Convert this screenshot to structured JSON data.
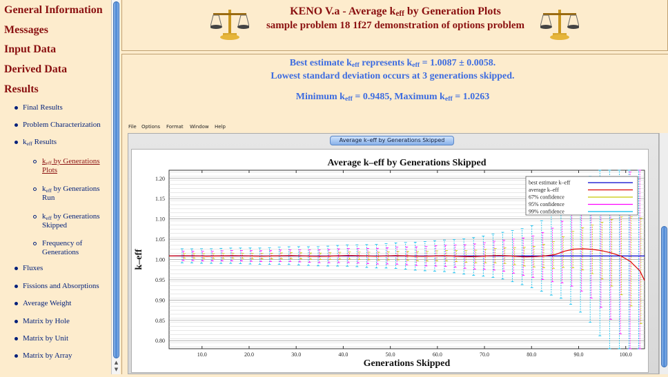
{
  "nav": {
    "items": [
      {
        "label": "General Information"
      },
      {
        "label": "Messages"
      },
      {
        "label": "Input Data"
      },
      {
        "label": "Derived Data"
      },
      {
        "label": "Results"
      }
    ],
    "results_items": [
      {
        "label": "Final Results"
      },
      {
        "label": "Problem Characterization"
      },
      {
        "label": "k",
        "sub": "eff",
        "rest": " Results"
      }
    ],
    "keff_subitems": [
      {
        "l1a": "k",
        "l1sub": "eff",
        "l1b": " by Generations",
        "l2": "Plots"
      },
      {
        "l1a": "k",
        "l1sub": "eff",
        "l1b": " by Generations",
        "l2": "Run"
      },
      {
        "l1a": "k",
        "l1sub": "eff",
        "l1b": " by Generations",
        "l2": "Skipped"
      },
      {
        "l1a": "Frequency of",
        "l1sub": "",
        "l1b": "",
        "l2": "Generations"
      }
    ],
    "more_items": [
      {
        "label": "Fluxes"
      },
      {
        "label": "Fissions and Absorptions"
      },
      {
        "label": "Average Weight"
      },
      {
        "label": "Matrix by Hole"
      },
      {
        "label": "Matrix by Unit"
      },
      {
        "label": "Matrix by Array"
      }
    ]
  },
  "header": {
    "title_a": "KENO V.a - Average k",
    "title_sub": "eff",
    "title_b": " by Generation Plots",
    "subtitle": "sample problem 18 1f27 demonstration of options problem"
  },
  "info": {
    "line1_a": "Best estimate k",
    "line1_sub1": "eff",
    "line1_b": " represents k",
    "line1_sub2": "eff",
    "line1_c": " = 1.0087 ± 0.0058.",
    "line2": "Lowest standard deviation occurs at 3 generations skipped.",
    "line3_a": "Minimum k",
    "line3_sub1": "eff",
    "line3_b": " = 0.9485, Maximum k",
    "line3_sub2": "eff",
    "line3_c": " = 1.0263"
  },
  "app_menu": [
    "File",
    "Options",
    "Format",
    "Window",
    "Help"
  ],
  "window_tab": "Average k–eff by Generations Skipped",
  "colors": {
    "best": "#0000cc",
    "avg": "#dd0000",
    "c67": "#c8c800",
    "c95": "#ff00ff",
    "c99": "#00bbee"
  },
  "chart_data": {
    "type": "line",
    "title": "Average k–eff by Generations Skipped",
    "xlabel": "Generations Skipped",
    "ylabel": "k–eff",
    "xlim": [
      3,
      104
    ],
    "ylim": [
      0.78,
      1.22
    ],
    "xticks": [
      "10.0",
      "20.0",
      "30.0",
      "40.0",
      "50.0",
      "60.0",
      "70.0",
      "80.0",
      "90.0",
      "100.0"
    ],
    "yticks": [
      "1.20",
      "1.15",
      "1.10",
      "1.05",
      "1.00",
      "0.95",
      "0.90",
      "0.85",
      "0.80"
    ],
    "legend": [
      "best estimate k–eff",
      "average k–eff",
      "67% confidence",
      "95% confidence",
      "99% confidence"
    ],
    "legend_position": "top-right",
    "grid": true,
    "best_estimate": 1.0087,
    "sigma": [
      0.0058,
      0.0058,
      0.006,
      0.006,
      0.0062,
      0.0063,
      0.0064,
      0.0066,
      0.0067,
      0.0069,
      0.0071,
      0.0073,
      0.0075,
      0.0077,
      0.0079,
      0.0082,
      0.0085,
      0.0088,
      0.009,
      0.0094,
      0.0097,
      0.01,
      0.0105,
      0.011,
      0.0115,
      0.012,
      0.0125,
      0.013,
      0.0137,
      0.0145,
      0.0155,
      0.0165,
      0.0178,
      0.0192,
      0.021,
      0.023,
      0.0255,
      0.029,
      0.033,
      0.038,
      0.045,
      0.052,
      0.06,
      0.07,
      0.082,
      0.096,
      0.11,
      0.13
    ],
    "series": [
      {
        "name": "average k–eff",
        "x": [
          3,
          5,
          7,
          9,
          11,
          13,
          15,
          17,
          19,
          21,
          23,
          25,
          27,
          29,
          31,
          33,
          35,
          37,
          39,
          41,
          43,
          45,
          47,
          49,
          51,
          53,
          55,
          57,
          59,
          61,
          63,
          65,
          67,
          69,
          71,
          73,
          75,
          77,
          79,
          81,
          83,
          85,
          87,
          89,
          91,
          93,
          95,
          97,
          99,
          101,
          103,
          104
        ],
        "y": [
          1.0087,
          1.009,
          1.0092,
          1.0088,
          1.0084,
          1.0086,
          1.0091,
          1.0094,
          1.009,
          1.0085,
          1.0082,
          1.0087,
          1.0092,
          1.0095,
          1.009,
          1.0083,
          1.0079,
          1.0084,
          1.0092,
          1.0098,
          1.0093,
          1.0086,
          1.0081,
          1.0088,
          1.0095,
          1.0091,
          1.0083,
          1.0079,
          1.0085,
          1.0093,
          1.0087,
          1.0076,
          1.007,
          1.0078,
          1.009,
          1.0098,
          1.0091,
          1.0077,
          1.0065,
          1.0073,
          1.0092,
          1.012,
          1.0205,
          1.0255,
          1.0263,
          1.0248,
          1.0215,
          1.016,
          1.0085,
          0.995,
          0.972,
          0.9485
        ]
      }
    ]
  }
}
